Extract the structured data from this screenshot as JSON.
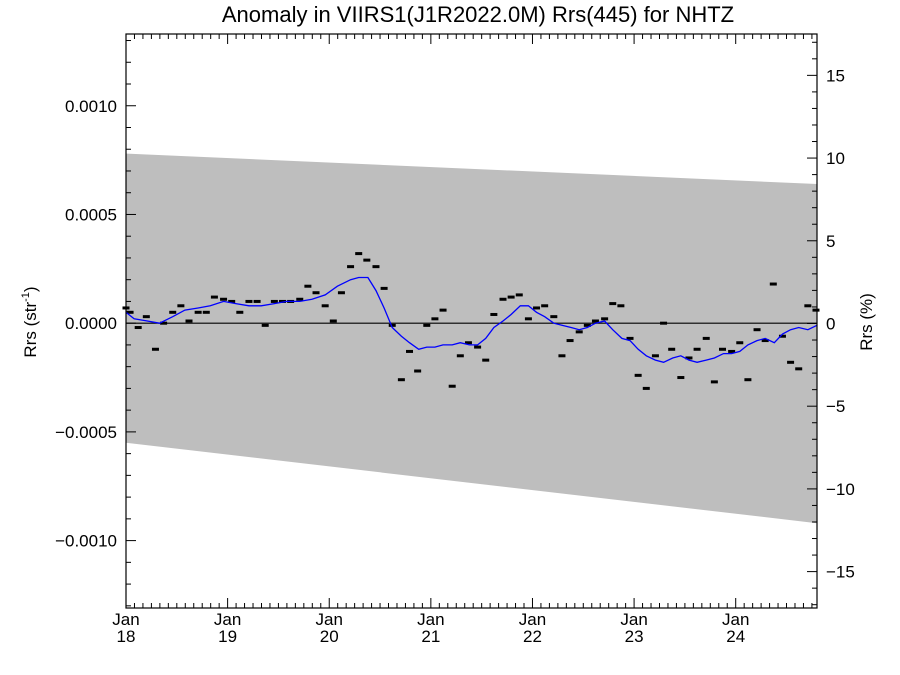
{
  "chart_data": {
    "type": "scatter",
    "title": "Anomaly in VIIRS1(J1R2022.0M) Rrs(445) for NHTZ",
    "ylabel": "Rrs (str",
    "ylabel_exponent": "-1",
    "ylabel_close": ")",
    "y2label": "Rrs (%)",
    "xlim": [
      2018.0,
      2024.8
    ],
    "ylim": [
      -0.00131,
      0.00133
    ],
    "y2lim": [
      -17.2,
      17.5
    ],
    "grid": false,
    "x_ticks": [
      {
        "value": 2018,
        "month": "Jan",
        "year": "18"
      },
      {
        "value": 2019,
        "month": "Jan",
        "year": "19"
      },
      {
        "value": 2020,
        "month": "Jan",
        "year": "20"
      },
      {
        "value": 2021,
        "month": "Jan",
        "year": "21"
      },
      {
        "value": 2022,
        "month": "Jan",
        "year": "22"
      },
      {
        "value": 2023,
        "month": "Jan",
        "year": "23"
      },
      {
        "value": 2024,
        "month": "Jan",
        "year": "24"
      }
    ],
    "y_ticks": [
      {
        "value": 0.001,
        "label": "0.0010"
      },
      {
        "value": 0.0005,
        "label": "0.0005"
      },
      {
        "value": 0.0,
        "label": "0.0000"
      },
      {
        "value": -0.0005,
        "label": "−0.0005"
      },
      {
        "value": -0.001,
        "label": "−0.0010"
      }
    ],
    "y2_ticks": [
      {
        "value": 15,
        "label": "15"
      },
      {
        "value": 10,
        "label": "10"
      },
      {
        "value": 5,
        "label": "5"
      },
      {
        "value": 0,
        "label": "0"
      },
      {
        "value": -5,
        "label": "−5"
      },
      {
        "value": -10,
        "label": "−10"
      },
      {
        "value": -15,
        "label": "−15"
      }
    ],
    "band": {
      "upper": [
        [
          2018.0,
          0.00078
        ],
        [
          2024.8,
          0.00064
        ]
      ],
      "lower": [
        [
          2018.0,
          -0.00055
        ],
        [
          2024.8,
          -0.00092
        ]
      ],
      "color": "#bebebe"
    },
    "series": [
      {
        "kind": "points",
        "color": "#000000",
        "points": [
          [
            2018.0,
            7e-05
          ],
          [
            2018.04,
            5e-05
          ],
          [
            2018.12,
            -2e-05
          ],
          [
            2018.2,
            3e-05
          ],
          [
            2018.29,
            -0.00012
          ],
          [
            2018.37,
            0.0
          ],
          [
            2018.46,
            5e-05
          ],
          [
            2018.54,
            8e-05
          ],
          [
            2018.62,
            1e-05
          ],
          [
            2018.71,
            5e-05
          ],
          [
            2018.79,
            5e-05
          ],
          [
            2018.87,
            0.00012
          ],
          [
            2018.96,
            0.00011
          ],
          [
            2019.04,
            0.0001
          ],
          [
            2019.12,
            5e-05
          ],
          [
            2019.21,
            0.0001
          ],
          [
            2019.29,
            0.0001
          ],
          [
            2019.37,
            -1e-05
          ],
          [
            2019.46,
            0.0001
          ],
          [
            2019.54,
            0.0001
          ],
          [
            2019.62,
            0.0001
          ],
          [
            2019.71,
            0.00011
          ],
          [
            2019.79,
            0.00017
          ],
          [
            2019.87,
            0.00014
          ],
          [
            2019.96,
            8e-05
          ],
          [
            2020.04,
            1e-05
          ],
          [
            2020.12,
            0.00014
          ],
          [
            2020.21,
            0.00026
          ],
          [
            2020.29,
            0.00032
          ],
          [
            2020.37,
            0.00029
          ],
          [
            2020.46,
            0.00026
          ],
          [
            2020.54,
            0.00016
          ],
          [
            2020.62,
            -1e-05
          ],
          [
            2020.71,
            -0.00026
          ],
          [
            2020.79,
            -0.00013
          ],
          [
            2020.87,
            -0.00022
          ],
          [
            2020.96,
            -1e-05
          ],
          [
            2021.04,
            2e-05
          ],
          [
            2021.12,
            6e-05
          ],
          [
            2021.21,
            -0.00029
          ],
          [
            2021.29,
            -0.00015
          ],
          [
            2021.37,
            -9e-05
          ],
          [
            2021.46,
            -0.00011
          ],
          [
            2021.54,
            -0.00017
          ],
          [
            2021.62,
            4e-05
          ],
          [
            2021.71,
            0.00011
          ],
          [
            2021.79,
            0.00012
          ],
          [
            2021.87,
            0.00013
          ],
          [
            2021.96,
            2e-05
          ],
          [
            2022.04,
            7e-05
          ],
          [
            2022.12,
            8e-05
          ],
          [
            2022.21,
            3e-05
          ],
          [
            2022.29,
            -0.00015
          ],
          [
            2022.37,
            -8e-05
          ],
          [
            2022.46,
            -4e-05
          ],
          [
            2022.54,
            -1e-05
          ],
          [
            2022.62,
            1e-05
          ],
          [
            2022.71,
            2e-05
          ],
          [
            2022.79,
            9e-05
          ],
          [
            2022.87,
            8e-05
          ],
          [
            2022.96,
            -7e-05
          ],
          [
            2023.04,
            -0.00024
          ],
          [
            2023.12,
            -0.0003
          ],
          [
            2023.21,
            -0.00015
          ],
          [
            2023.29,
            0.0
          ],
          [
            2023.37,
            -0.00012
          ],
          [
            2023.46,
            -0.00025
          ],
          [
            2023.54,
            -0.00016
          ],
          [
            2023.62,
            -0.00012
          ],
          [
            2023.71,
            -7e-05
          ],
          [
            2023.79,
            -0.00027
          ],
          [
            2023.87,
            -0.00012
          ],
          [
            2023.96,
            -0.00013
          ],
          [
            2024.04,
            -9e-05
          ],
          [
            2024.12,
            -0.00026
          ],
          [
            2024.21,
            -3e-05
          ],
          [
            2024.29,
            -8e-05
          ],
          [
            2024.37,
            0.00018
          ],
          [
            2024.46,
            -6e-05
          ],
          [
            2024.54,
            -0.00018
          ],
          [
            2024.62,
            -0.00021
          ],
          [
            2024.71,
            8e-05
          ],
          [
            2024.79,
            6e-05
          ]
        ]
      },
      {
        "kind": "line",
        "color": "#0000ff",
        "points": [
          [
            2018.0,
            5e-05
          ],
          [
            2018.08,
            2e-05
          ],
          [
            2018.21,
            1e-05
          ],
          [
            2018.33,
            0.0
          ],
          [
            2018.46,
            3e-05
          ],
          [
            2018.58,
            6e-05
          ],
          [
            2018.71,
            7e-05
          ],
          [
            2018.83,
            8e-05
          ],
          [
            2018.96,
            0.0001
          ],
          [
            2019.08,
            9e-05
          ],
          [
            2019.21,
            8e-05
          ],
          [
            2019.33,
            8e-05
          ],
          [
            2019.46,
            9e-05
          ],
          [
            2019.58,
            0.0001
          ],
          [
            2019.71,
            0.0001
          ],
          [
            2019.83,
            0.00011
          ],
          [
            2019.96,
            0.00013
          ],
          [
            2020.08,
            0.00017
          ],
          [
            2020.21,
            0.0002
          ],
          [
            2020.29,
            0.00021
          ],
          [
            2020.38,
            0.00021
          ],
          [
            2020.46,
            0.00015
          ],
          [
            2020.54,
            7e-05
          ],
          [
            2020.62,
            -2e-05
          ],
          [
            2020.71,
            -6e-05
          ],
          [
            2020.79,
            -9e-05
          ],
          [
            2020.88,
            -0.00012
          ],
          [
            2020.96,
            -0.00011
          ],
          [
            2021.04,
            -0.00011
          ],
          [
            2021.12,
            -0.0001
          ],
          [
            2021.21,
            -0.0001
          ],
          [
            2021.29,
            -9e-05
          ],
          [
            2021.38,
            -0.0001
          ],
          [
            2021.46,
            -0.0001
          ],
          [
            2021.54,
            -7e-05
          ],
          [
            2021.62,
            -2e-05
          ],
          [
            2021.71,
            1e-05
          ],
          [
            2021.79,
            4e-05
          ],
          [
            2021.88,
            8e-05
          ],
          [
            2021.96,
            8e-05
          ],
          [
            2022.04,
            5e-05
          ],
          [
            2022.12,
            3e-05
          ],
          [
            2022.21,
            0.0
          ],
          [
            2022.29,
            -1e-05
          ],
          [
            2022.38,
            -2e-05
          ],
          [
            2022.46,
            -3e-05
          ],
          [
            2022.54,
            -2e-05
          ],
          [
            2022.62,
            0.0
          ],
          [
            2022.71,
            1e-05
          ],
          [
            2022.79,
            -3e-05
          ],
          [
            2022.88,
            -7e-05
          ],
          [
            2022.96,
            -8e-05
          ],
          [
            2023.04,
            -0.00012
          ],
          [
            2023.12,
            -0.00015
          ],
          [
            2023.21,
            -0.00017
          ],
          [
            2023.29,
            -0.00018
          ],
          [
            2023.38,
            -0.00016
          ],
          [
            2023.46,
            -0.00015
          ],
          [
            2023.54,
            -0.00017
          ],
          [
            2023.62,
            -0.00018
          ],
          [
            2023.71,
            -0.00017
          ],
          [
            2023.79,
            -0.00016
          ],
          [
            2023.88,
            -0.00014
          ],
          [
            2023.96,
            -0.00014
          ],
          [
            2024.04,
            -0.00013
          ],
          [
            2024.12,
            -0.0001
          ],
          [
            2024.21,
            -8e-05
          ],
          [
            2024.29,
            -7e-05
          ],
          [
            2024.38,
            -9e-05
          ],
          [
            2024.46,
            -5e-05
          ],
          [
            2024.54,
            -3e-05
          ],
          [
            2024.62,
            -2e-05
          ],
          [
            2024.71,
            -3e-05
          ],
          [
            2024.8,
            -1e-05
          ]
        ]
      }
    ]
  }
}
